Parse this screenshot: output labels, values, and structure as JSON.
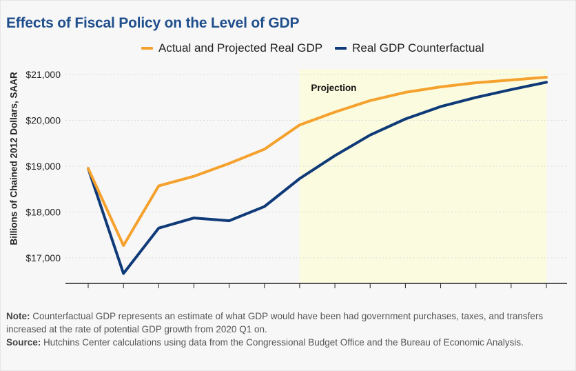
{
  "title": "Effects of Fiscal Policy on the Level of GDP",
  "note_label": "Note:",
  "note_text": "Counterfactual GDP represents an estimate of what GDP would have been had government purchases, taxes, and transfers increased at the rate of potential GDP growth from 2020 Q1 on.",
  "source_label": "Source:",
  "source_text": "Hutchins Center calculations using data from the Congressional Budget Office and the Bureau of Economic Analysis.",
  "colors": {
    "actual": "#f5a12d",
    "counterfactual": "#0f3a78",
    "projection_shade": "#fbfbdf",
    "title": "#1f4e8c"
  },
  "chart_data": {
    "type": "line",
    "title": "Effects of Fiscal Policy on the Level of GDP",
    "ylabel": "Billions of Chained 2012 Dollars, SAAR",
    "xlabel": "",
    "x_tick_count": 14,
    "ylim": [
      16450,
      21150
    ],
    "yticks": [
      17000,
      18000,
      19000,
      20000,
      21000
    ],
    "ytick_labels": [
      "$17,000",
      "$18,000",
      "$19,000",
      "$20,000",
      "$21,000"
    ],
    "grid": "horizontal dotted",
    "legend_position": "top",
    "projection": {
      "label": "Projection",
      "start_index": 6,
      "end_index": 13
    },
    "series": [
      {
        "name": "Actual and Projected Real GDP",
        "color": "#f5a12d",
        "values": [
          18950,
          17270,
          18570,
          18780,
          19060,
          19370,
          19900,
          20180,
          20430,
          20610,
          20730,
          20820,
          20880,
          20940
        ]
      },
      {
        "name": "Real GDP Counterfactual",
        "color": "#0f3a78",
        "values": [
          18950,
          16660,
          17650,
          17870,
          17810,
          18120,
          18730,
          19230,
          19680,
          20030,
          20300,
          20500,
          20670,
          20830
        ]
      }
    ]
  }
}
